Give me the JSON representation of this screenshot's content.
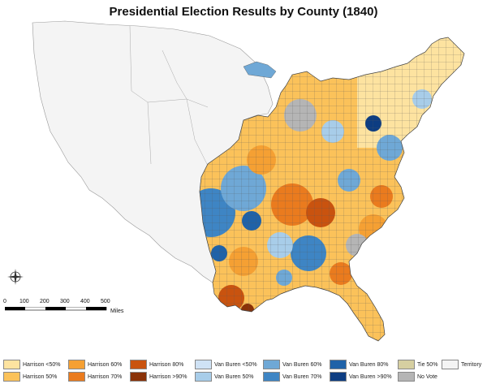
{
  "title": "Presidential Election Results by County (1840)",
  "scale": {
    "ticks": [
      "0",
      "100",
      "200",
      "300",
      "400",
      "500"
    ],
    "unit": "Miles"
  },
  "compass": {
    "icon": "compass-rose-icon"
  },
  "legend": [
    {
      "label": "Harrison <50%",
      "color": "#fde3a0"
    },
    {
      "label": "Harrison 50%",
      "color": "#fbc25a"
    },
    {
      "label": "Harrison 60%",
      "color": "#f5a033"
    },
    {
      "label": "Harrison 70%",
      "color": "#ea7b1e"
    },
    {
      "label": "Harrison 80%",
      "color": "#c9530f"
    },
    {
      "label": "Harrison >90%",
      "color": "#8a3208"
    },
    {
      "label": "Van Buren <50%",
      "color": "#cfe2f5"
    },
    {
      "label": "Van Buren 50%",
      "color": "#a8cde9"
    },
    {
      "label": "Van Buren 60%",
      "color": "#6fa8d6"
    },
    {
      "label": "Van Buren 70%",
      "color": "#3e85c4"
    },
    {
      "label": "Van Buren 80%",
      "color": "#1f62a8"
    },
    {
      "label": "Van Buren >90%",
      "color": "#0d3d82"
    },
    {
      "label": "Tie 50%",
      "color": "#d6cfa1"
    },
    {
      "label": "No Vote",
      "color": "#b5b5b5"
    },
    {
      "label": "Territory",
      "color": "#f4f4f4"
    }
  ]
}
